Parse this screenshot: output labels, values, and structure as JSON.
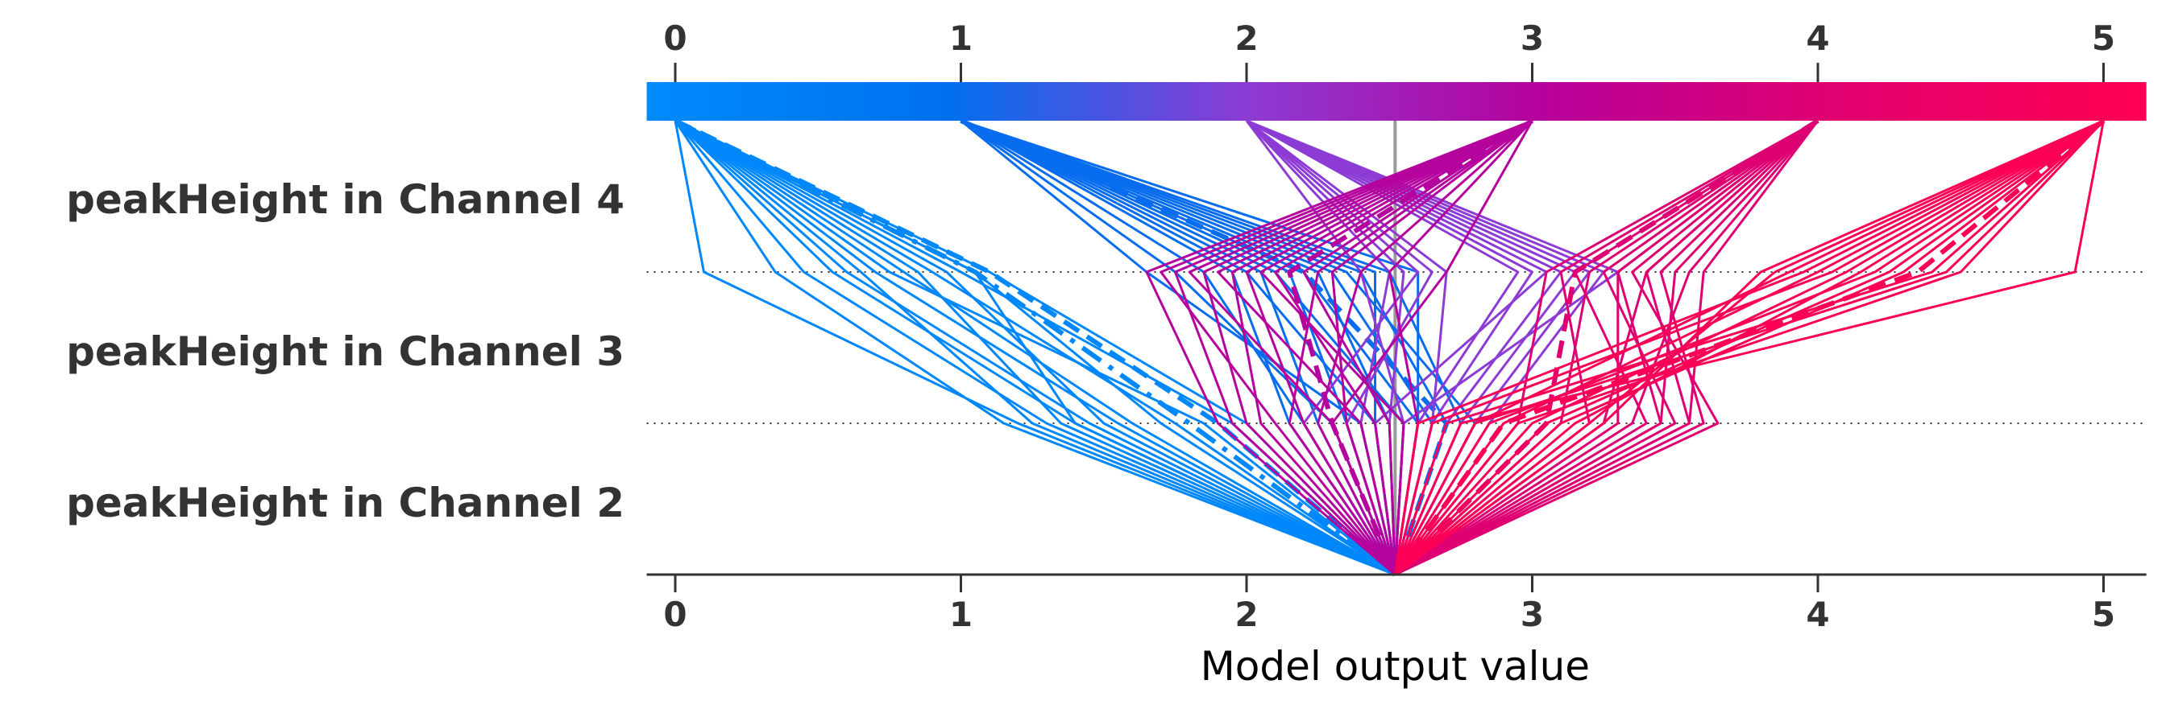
{
  "chart_data": {
    "type": "line",
    "subtype": "shap-decision-plot",
    "xlabel": "Model output value",
    "xlim": [
      -0.1,
      5.15
    ],
    "x_ticks": [
      "0",
      "1",
      "2",
      "3",
      "4",
      "5"
    ],
    "features": [
      "peakHeight in Channel 4",
      "peakHeight in Channel 3",
      "peakHeight in Channel 2"
    ],
    "base_value": 2.52,
    "colorbar_stops": [
      "#008bfb",
      "#0070ef",
      "#8c3bd4",
      "#b7009a",
      "#e2006e",
      "#ff0052"
    ],
    "grid": "dotted-row-separators",
    "series": [
      {
        "x": [
          0.0,
          0.1,
          1.2,
          2.52
        ]
      },
      {
        "x": [
          0.0,
          0.35,
          1.15,
          2.52
        ]
      },
      {
        "x": [
          0.0,
          0.45,
          1.3,
          2.52
        ]
      },
      {
        "x": [
          0.0,
          0.55,
          1.4,
          2.52
        ]
      },
      {
        "x": [
          0.0,
          0.6,
          1.45,
          2.52
        ]
      },
      {
        "x": [
          0.0,
          0.7,
          1.55,
          2.52
        ]
      },
      {
        "x": [
          0.0,
          0.8,
          1.6,
          2.52
        ]
      },
      {
        "x": [
          0.0,
          0.85,
          1.35,
          2.52
        ]
      },
      {
        "x": [
          0.0,
          0.95,
          1.5,
          2.52
        ]
      },
      {
        "x": [
          0.0,
          1.05,
          1.7,
          2.52
        ]
      },
      {
        "x": [
          0.0,
          0.65,
          1.25,
          2.52
        ]
      },
      {
        "x": [
          0.0,
          0.75,
          1.85,
          2.52
        ]
      },
      {
        "x": [
          0.0,
          1.0,
          1.95,
          2.52
        ]
      },
      {
        "x": [
          0.0,
          1.1,
          2.0,
          2.52
        ]
      },
      {
        "x": [
          0.0,
          0.9,
          1.75,
          2.52
        ]
      },
      {
        "x": [
          0.0,
          1.05,
          1.4,
          2.52
        ]
      },
      {
        "x": [
          0.0,
          1.05,
          1.8,
          2.52
        ],
        "style": "dashdot"
      },
      {
        "x": [
          0.0,
          1.1,
          1.9,
          2.52
        ],
        "style": "dashed"
      },
      {
        "x": [
          1.0,
          1.65,
          2.4,
          2.52
        ]
      },
      {
        "x": [
          1.0,
          1.75,
          2.3,
          2.52
        ]
      },
      {
        "x": [
          1.0,
          1.85,
          2.2,
          2.52
        ]
      },
      {
        "x": [
          1.0,
          2.0,
          2.45,
          2.52
        ]
      },
      {
        "x": [
          1.0,
          2.1,
          2.55,
          2.52
        ]
      },
      {
        "x": [
          1.0,
          2.2,
          2.6,
          2.52
        ]
      },
      {
        "x": [
          1.0,
          2.3,
          2.65,
          2.52
        ]
      },
      {
        "x": [
          1.0,
          2.4,
          2.7,
          2.52
        ]
      },
      {
        "x": [
          1.0,
          2.5,
          2.75,
          2.52
        ]
      },
      {
        "x": [
          1.0,
          2.15,
          2.35,
          2.52
        ]
      },
      {
        "x": [
          1.0,
          2.25,
          2.5,
          2.52
        ]
      },
      {
        "x": [
          1.0,
          2.35,
          2.8,
          2.52
        ]
      },
      {
        "x": [
          1.0,
          2.05,
          2.25,
          2.52
        ]
      },
      {
        "x": [
          1.0,
          1.95,
          2.15,
          2.52
        ]
      },
      {
        "x": [
          1.0,
          2.45,
          2.45,
          2.52
        ]
      },
      {
        "x": [
          1.0,
          2.6,
          2.6,
          2.52
        ]
      },
      {
        "x": [
          1.0,
          2.2,
          2.7,
          2.52
        ],
        "style": "dashed"
      },
      {
        "x": [
          2.0,
          2.65,
          2.35,
          2.52
        ]
      },
      {
        "x": [
          2.0,
          2.5,
          2.4,
          2.52
        ]
      },
      {
        "x": [
          2.0,
          2.95,
          2.6,
          2.52
        ]
      },
      {
        "x": [
          2.0,
          3.1,
          2.7,
          2.52
        ]
      },
      {
        "x": [
          2.0,
          3.2,
          2.8,
          2.52
        ]
      },
      {
        "x": [
          2.0,
          3.25,
          2.85,
          2.52
        ]
      },
      {
        "x": [
          2.0,
          3.3,
          2.55,
          2.52
        ]
      },
      {
        "x": [
          2.0,
          2.7,
          2.65,
          2.52
        ]
      },
      {
        "x": [
          2.0,
          2.55,
          2.5,
          2.52
        ]
      },
      {
        "x": [
          2.0,
          3.15,
          2.75,
          2.52
        ]
      },
      {
        "x": [
          2.0,
          2.6,
          2.2,
          2.52
        ]
      },
      {
        "x": [
          2.0,
          3.05,
          2.45,
          2.52
        ]
      },
      {
        "x": [
          2.0,
          2.4,
          2.55,
          2.52
        ]
      },
      {
        "x": [
          2.0,
          3.0,
          2.65,
          2.52
        ]
      },
      {
        "x": [
          3.0,
          1.7,
          2.1,
          2.52
        ]
      },
      {
        "x": [
          3.0,
          1.8,
          2.3,
          2.52
        ]
      },
      {
        "x": [
          3.0,
          1.9,
          2.4,
          2.52
        ]
      },
      {
        "x": [
          3.0,
          2.0,
          2.2,
          2.52
        ]
      },
      {
        "x": [
          3.0,
          2.1,
          2.45,
          2.52
        ]
      },
      {
        "x": [
          3.0,
          2.2,
          2.5,
          2.52
        ]
      },
      {
        "x": [
          3.0,
          2.3,
          2.35,
          2.52
        ]
      },
      {
        "x": [
          3.0,
          2.5,
          2.6,
          2.52
        ]
      },
      {
        "x": [
          3.0,
          2.7,
          2.3,
          2.52
        ]
      },
      {
        "x": [
          3.0,
          1.75,
          1.95,
          2.52
        ]
      },
      {
        "x": [
          3.0,
          1.95,
          2.05,
          2.52
        ]
      },
      {
        "x": [
          3.0,
          2.25,
          2.15,
          2.52
        ]
      },
      {
        "x": [
          3.0,
          2.4,
          2.25,
          2.52
        ]
      },
      {
        "x": [
          3.0,
          1.85,
          2.0,
          2.52
        ]
      },
      {
        "x": [
          3.0,
          2.05,
          2.55,
          2.52
        ]
      },
      {
        "x": [
          3.0,
          1.65,
          1.9,
          2.52
        ]
      },
      {
        "x": [
          3.0,
          2.15,
          2.3,
          2.52
        ],
        "style": "dashed"
      },
      {
        "x": [
          4.0,
          3.1,
          3.2,
          2.52
        ]
      },
      {
        "x": [
          4.0,
          3.15,
          3.4,
          2.52
        ]
      },
      {
        "x": [
          4.0,
          3.25,
          3.5,
          2.52
        ]
      },
      {
        "x": [
          4.0,
          3.3,
          3.3,
          2.52
        ]
      },
      {
        "x": [
          4.0,
          3.4,
          3.55,
          2.52
        ]
      },
      {
        "x": [
          4.0,
          3.45,
          3.6,
          2.52
        ]
      },
      {
        "x": [
          4.0,
          3.5,
          3.45,
          2.52
        ]
      },
      {
        "x": [
          4.0,
          3.35,
          3.65,
          2.52
        ]
      },
      {
        "x": [
          4.0,
          3.2,
          3.1,
          2.52
        ]
      },
      {
        "x": [
          4.0,
          3.55,
          3.35,
          2.52
        ]
      },
      {
        "x": [
          4.0,
          3.05,
          2.95,
          2.52
        ]
      },
      {
        "x": [
          4.0,
          3.3,
          3.45,
          2.52
        ]
      },
      {
        "x": [
          4.0,
          3.6,
          3.55,
          2.52
        ]
      },
      {
        "x": [
          4.0,
          3.4,
          3.25,
          2.52
        ]
      },
      {
        "x": [
          4.0,
          3.15,
          3.05,
          2.52
        ],
        "style": "dashed"
      },
      {
        "x": [
          5.0,
          3.9,
          2.8,
          2.52
        ]
      },
      {
        "x": [
          5.0,
          4.0,
          2.9,
          2.52
        ]
      },
      {
        "x": [
          5.0,
          4.1,
          3.0,
          2.52
        ]
      },
      {
        "x": [
          5.0,
          4.2,
          2.85,
          2.52
        ]
      },
      {
        "x": [
          5.0,
          4.3,
          3.1,
          2.52
        ]
      },
      {
        "x": [
          5.0,
          4.4,
          2.7,
          2.52
        ]
      },
      {
        "x": [
          5.0,
          4.5,
          2.95,
          2.52
        ]
      },
      {
        "x": [
          5.0,
          4.9,
          2.75,
          2.52
        ]
      },
      {
        "x": [
          5.0,
          3.85,
          3.2,
          2.52
        ]
      },
      {
        "x": [
          5.0,
          4.05,
          2.65,
          2.52
        ]
      },
      {
        "x": [
          5.0,
          4.25,
          3.05,
          2.52
        ]
      },
      {
        "x": [
          5.0,
          3.95,
          2.6,
          2.52
        ]
      },
      {
        "x": [
          5.0,
          4.15,
          3.15,
          2.52
        ]
      },
      {
        "x": [
          5.0,
          4.45,
          2.8,
          2.52
        ]
      },
      {
        "x": [
          5.0,
          3.8,
          3.25,
          2.52
        ]
      },
      {
        "x": [
          5.0,
          4.35,
          2.9,
          2.52
        ],
        "style": "dashed"
      }
    ]
  }
}
